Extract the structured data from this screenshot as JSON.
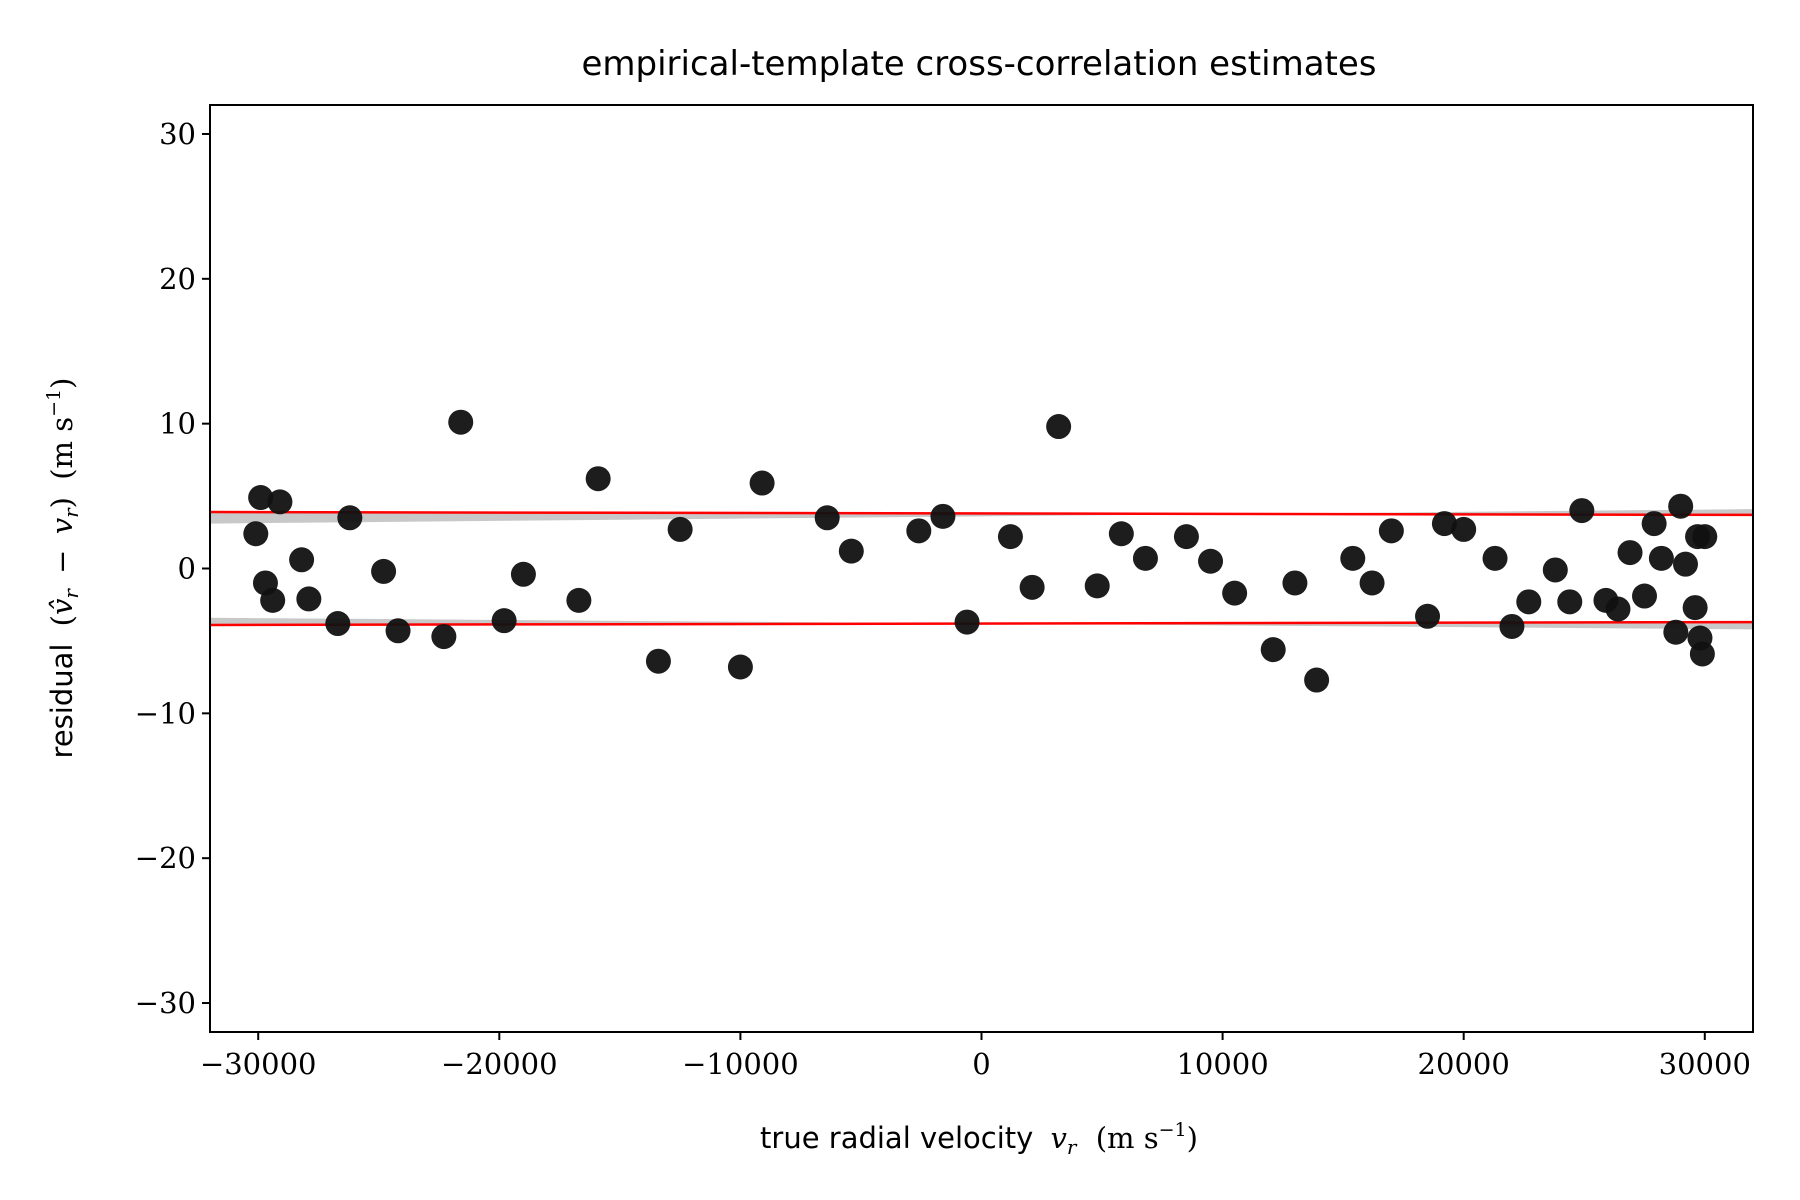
{
  "chart_data": {
    "type": "scatter",
    "title": "empirical-template cross-correlation estimates",
    "xlabel": "true radial velocity v_r (m s^-1)",
    "ylabel": "residual (v̂_r − v_r) (m s^-1)",
    "xlabel_parts": {
      "text": "true radial velocity",
      "var": "v",
      "sub": "r",
      "unit": "(m s",
      "exp": "−1",
      "close": ")"
    },
    "ylabel_parts": {
      "text": "residual",
      "open": "(",
      "var": "v̂",
      "sub": "r",
      "minus": "−",
      "var2": "v",
      "sub2": "r",
      "close1": ")",
      "unit": "(m s",
      "exp": "−1",
      "close": ")"
    },
    "xlim": [
      -32000,
      32000
    ],
    "ylim": [
      -32,
      32
    ],
    "xticks": [
      -30000,
      -20000,
      -10000,
      0,
      10000,
      20000,
      30000
    ],
    "xtick_labels": [
      "−30000",
      "−20000",
      "−10000",
      "0",
      "10000",
      "20000",
      "30000"
    ],
    "yticks": [
      -30,
      -20,
      -10,
      0,
      10,
      20,
      30
    ],
    "ytick_labels": [
      "−30",
      "−20",
      "−10",
      "0",
      "10",
      "20",
      "30"
    ],
    "grid": false,
    "colors": {
      "points": "#111111",
      "band_lines": "#ff0000",
      "band_fill": "#c8c8c8"
    },
    "series": [
      {
        "x": [
          -30100,
          -29900,
          -29700,
          -29400,
          -29100,
          -28200,
          -27900,
          -26700,
          -26200,
          -24800,
          -24200,
          -22300,
          -21600,
          -19800,
          -19000,
          -16700,
          -15900,
          -13400,
          -12500,
          -10000,
          -9100,
          -6400,
          -5400,
          -2600,
          -1600,
          -600,
          1200,
          2100,
          3200,
          4800,
          5800,
          6800,
          8500,
          9500,
          10500,
          12100,
          13000,
          13900,
          15400,
          16200,
          17000,
          18500,
          19200,
          20000,
          21300,
          22000,
          22700,
          23800,
          24400,
          24900,
          25900,
          26400,
          26900,
          27500,
          27900,
          28200,
          28800,
          29000,
          29200,
          29600,
          29700,
          29800,
          29900,
          30000
        ],
        "y": [
          2.4,
          4.9,
          -1.0,
          -2.2,
          4.6,
          0.6,
          -2.1,
          -3.8,
          3.5,
          -0.2,
          -4.3,
          -4.7,
          10.1,
          -3.6,
          -0.4,
          -2.2,
          6.2,
          -6.4,
          2.7,
          -6.8,
          5.9,
          3.5,
          1.2,
          2.6,
          3.6,
          -3.7,
          2.2,
          -1.3,
          9.8,
          -1.2,
          2.4,
          0.7,
          2.2,
          0.5,
          -1.7,
          -5.6,
          -1.0,
          -7.7,
          0.7,
          -1.0,
          2.6,
          -3.3,
          3.1,
          2.7,
          0.7,
          -4.0,
          -2.3,
          -0.1,
          -2.3,
          4.0,
          -2.2,
          -2.8,
          1.1,
          -1.9,
          3.1,
          0.7,
          -4.4,
          4.3,
          0.3,
          -2.7,
          2.2,
          -4.8,
          -5.9,
          2.2
        ]
      }
    ],
    "band": {
      "x": [
        -32000,
        32000
      ],
      "upper": [
        3.9,
        3.7
      ],
      "lower": [
        -3.9,
        -3.7
      ],
      "fill_upper": [
        3.1,
        4.1
      ],
      "fill_lower": [
        -3.4,
        -4.2
      ]
    }
  }
}
